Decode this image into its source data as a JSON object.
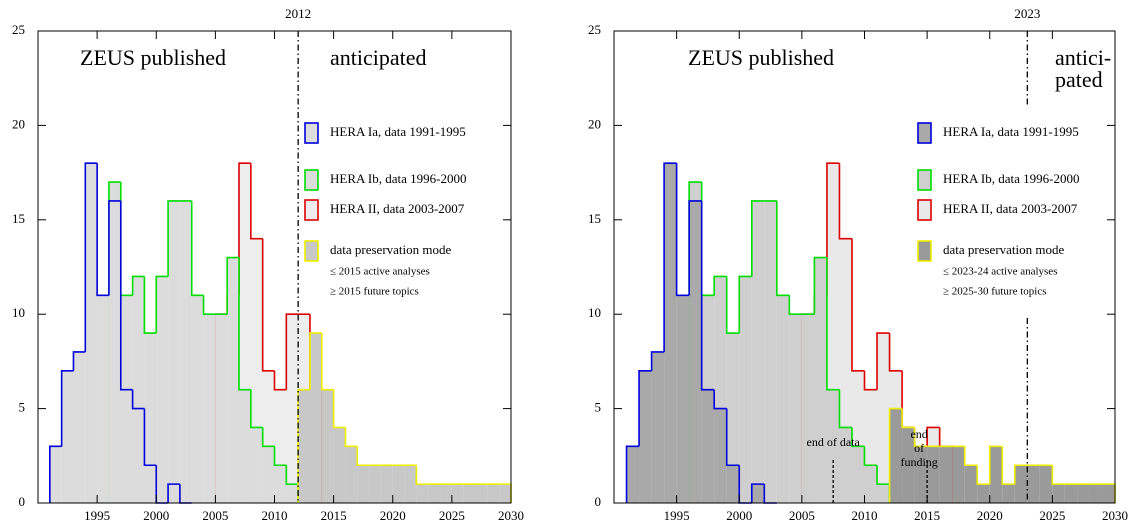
{
  "chart_data": [
    {
      "type": "histogram",
      "xlim": [
        1990,
        2030
      ],
      "ylim": [
        0,
        25
      ],
      "xticks": [
        1995,
        2000,
        2005,
        2010,
        2015,
        2020,
        2025,
        2030
      ],
      "yticks": [
        0,
        5,
        10,
        15,
        20,
        25
      ],
      "annotations": [
        "ZEUS published",
        [
          "anticipated"
        ]
      ],
      "vlines": [
        2012
      ],
      "notes": [
        "≤ 2015 active analyses",
        "≥ 2015 future topics"
      ],
      "series": [
        {
          "name": "HERA Ia, data 1991-1995",
          "color": "#0000dd",
          "fill": "#dcdcdc",
          "bins": [
            1991,
            1992,
            1993,
            1994,
            1995,
            1996,
            1997,
            1998,
            1999,
            2000,
            2001,
            2002,
            2003
          ],
          "values": [
            3,
            7,
            8,
            18,
            11,
            16,
            6,
            5,
            2,
            0,
            1,
            0
          ]
        },
        {
          "name": "HERA Ib, data 1996-2000",
          "color": "#00dd00",
          "fill": "#dcdcdc",
          "bins": [
            1996,
            1997,
            1998,
            1999,
            2000,
            2001,
            2002,
            2003,
            2004,
            2005,
            2006,
            2007,
            2008,
            2009,
            2010,
            2011,
            2012
          ],
          "values": [
            17,
            11,
            12,
            9,
            12,
            16,
            16,
            11,
            10,
            10,
            13,
            6,
            4,
            3,
            2,
            1
          ]
        },
        {
          "name": "HERA II, data 2003-2007",
          "color": "#dd0000",
          "fill": "#ededed",
          "bins": [
            2005,
            2006,
            2007,
            2008,
            2009,
            2010,
            2011,
            2012,
            2013,
            2014
          ],
          "values": [
            10,
            11,
            18,
            14,
            7,
            6,
            10,
            10,
            6
          ]
        },
        {
          "name": "data preservation mode",
          "color": "#eeee00",
          "fill": "#c8c8c8",
          "bins": [
            2012,
            2013,
            2014,
            2015,
            2016,
            2017,
            2018,
            2019,
            2020,
            2021,
            2022,
            2023,
            2024,
            2025,
            2026,
            2027,
            2028,
            2029,
            2030
          ],
          "values": [
            6,
            9,
            6,
            4,
            3,
            2,
            2,
            2,
            2,
            2,
            1,
            1,
            1,
            1,
            1,
            1,
            1,
            1
          ]
        }
      ]
    },
    {
      "type": "histogram",
      "xlim": [
        1990,
        2030
      ],
      "ylim": [
        0,
        25
      ],
      "xticks": [
        1995,
        2000,
        2005,
        2010,
        2015,
        2020,
        2025,
        2030
      ],
      "yticks": [
        0,
        5,
        10,
        15,
        20,
        25
      ],
      "annotations": [
        "ZEUS published",
        [
          "antici-",
          "pated"
        ]
      ],
      "vlines": [
        2023
      ],
      "markers": [
        {
          "x": 2007.5,
          "label": [
            "end of data"
          ]
        },
        {
          "x": 2015,
          "label": [
            "end",
            "of",
            "funding"
          ]
        }
      ],
      "notes": [
        "≤ 2023-24 active analyses",
        "≥ 2025-30 future topics"
      ],
      "series": [
        {
          "name": "HERA Ia, data 1991-1995",
          "color": "#0000dd",
          "fill": "#a9a9a9",
          "bins": [
            1991,
            1992,
            1993,
            1994,
            1995,
            1996,
            1997,
            1998,
            1999,
            2000,
            2001,
            2002,
            2003
          ],
          "values": [
            3,
            7,
            8,
            18,
            11,
            16,
            6,
            5,
            2,
            0,
            1,
            0
          ]
        },
        {
          "name": "HERA Ib, data 1996-2000",
          "color": "#00dd00",
          "fill": "#cfcfcf",
          "bins": [
            1996,
            1997,
            1998,
            1999,
            2000,
            2001,
            2002,
            2003,
            2004,
            2005,
            2006,
            2007,
            2008,
            2009,
            2010,
            2011,
            2012
          ],
          "values": [
            17,
            11,
            12,
            9,
            12,
            16,
            16,
            11,
            10,
            10,
            13,
            6,
            4,
            3,
            2,
            1
          ]
        },
        {
          "name": "HERA II, data 2003-2007",
          "color": "#dd0000",
          "fill": "#e9e9e9",
          "bins": [
            2005,
            2006,
            2007,
            2008,
            2009,
            2010,
            2011,
            2012,
            2013,
            2014,
            2015,
            2016,
            2017
          ],
          "values": [
            10,
            11,
            18,
            14,
            7,
            6,
            9,
            7,
            4,
            3,
            4,
            3
          ]
        },
        {
          "name": "data preservation mode",
          "color": "#eeee00",
          "fill": "#9a9a9a",
          "bins": [
            2012,
            2013,
            2014,
            2015,
            2016,
            2017,
            2018,
            2019,
            2020,
            2021,
            2022,
            2023,
            2024,
            2025,
            2026,
            2027,
            2028,
            2029,
            2030
          ],
          "values": [
            5,
            4,
            3,
            3,
            3,
            3,
            2,
            1,
            3,
            1,
            2,
            2,
            2,
            1,
            1,
            1,
            1,
            1
          ]
        }
      ]
    }
  ]
}
